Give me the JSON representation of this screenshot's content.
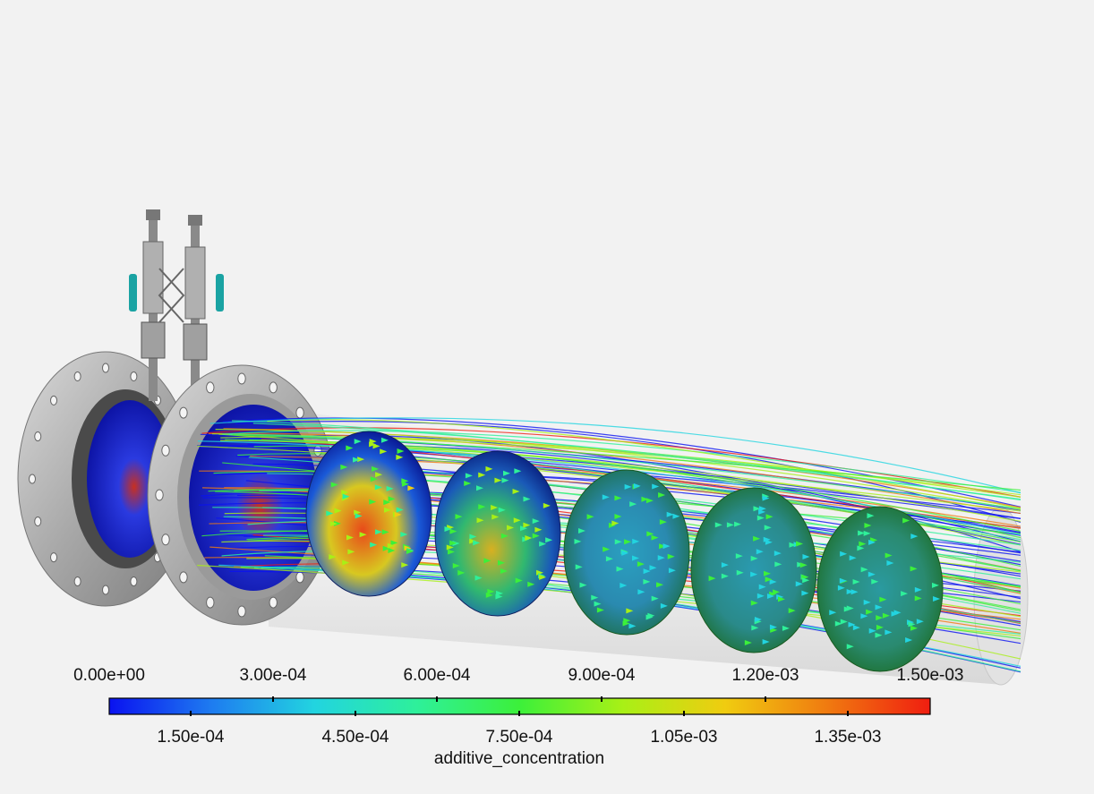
{
  "legend": {
    "variable": "additive_concentration",
    "top_ticks": [
      "0.00e+00",
      "3.00e-04",
      "6.00e-04",
      "9.00e-04",
      "1.20e-03",
      "1.50e-03"
    ],
    "bottom_ticks": [
      "1.50e-04",
      "4.50e-04",
      "7.50e-04",
      "1.05e-03",
      "1.35e-03"
    ],
    "range": [
      0,
      0.0015
    ],
    "colormap": [
      "#0a12f0",
      "#1e7cf0",
      "#22d4e0",
      "#2ef09a",
      "#3cf03a",
      "#a8f016",
      "#f0cc10",
      "#f07a10",
      "#f01e10"
    ]
  },
  "scene": {
    "pipe_color": "#d6d6d6",
    "flange_color": "#a9a9a9",
    "valve_handle_color": "#1aa3a3",
    "num_section_planes": 5
  }
}
